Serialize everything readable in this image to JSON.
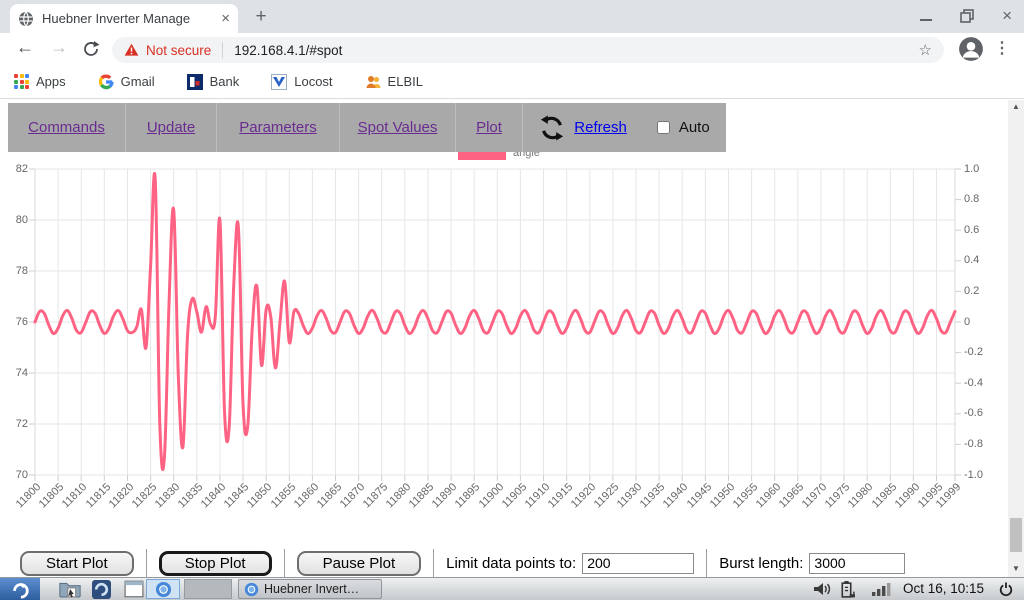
{
  "browser": {
    "tab_title": "Huebner Inverter Manage",
    "url": "192.168.4.1/#spot",
    "security_label": "Not secure",
    "bookmarks": [
      {
        "label": "Apps"
      },
      {
        "label": "Gmail"
      },
      {
        "label": "Bank"
      },
      {
        "label": "Locost"
      },
      {
        "label": "ELBIL"
      }
    ],
    "glyphs": {
      "close": "×",
      "new_tab": "+",
      "back": "←",
      "forward": "→",
      "star": "☆",
      "menu_dots": "⋮",
      "up_arrow": "▲",
      "down_arrow": "▼"
    }
  },
  "nav": {
    "links": [
      "Commands",
      "Update",
      "Parameters",
      "Spot Values",
      "Plot"
    ],
    "refresh_label": "Refresh",
    "auto_label": "Auto",
    "link_color": "#6a2c91",
    "refresh_color": "#0000ee"
  },
  "chart_data": {
    "type": "line",
    "title": "",
    "legend": [
      {
        "label": "angle",
        "color": "#ff6384"
      }
    ],
    "grid": true,
    "x_start": 11800,
    "x_tick_labels": [
      "11800",
      "11805",
      "11810",
      "11815",
      "11820",
      "11825",
      "11830",
      "11835",
      "11840",
      "11845",
      "11850",
      "11855",
      "11860",
      "11865",
      "11870",
      "11875",
      "11880",
      "11885",
      "11890",
      "11895",
      "11900",
      "11905",
      "11910",
      "11915",
      "11920",
      "11925",
      "11930",
      "11935",
      "11940",
      "11945",
      "11950",
      "11955",
      "11960",
      "11965",
      "11970",
      "11975",
      "11980",
      "11985",
      "11990",
      "11995",
      "11999"
    ],
    "y_left": {
      "min": 70,
      "max": 82,
      "ticks": [
        "82",
        "80",
        "78",
        "76",
        "74",
        "72",
        "70"
      ]
    },
    "y_right": {
      "min": -1,
      "max": 1,
      "ticks": [
        "1.0",
        "0.8",
        "0.6",
        "0.4",
        "0.2",
        "0",
        "-0.2",
        "-0.4",
        "-0.6",
        "-0.8",
        "-1.0"
      ]
    },
    "series": [
      {
        "name": "angle",
        "color": "#ff6384",
        "values": [
          76,
          76.41,
          76.34,
          75.87,
          75.55,
          75.76,
          76.24,
          76.45,
          76.13,
          75.66,
          75.59,
          76,
          76.41,
          76.34,
          75.87,
          75.55,
          75.76,
          76.24,
          76.45,
          76.13,
          75.66,
          75.59,
          75.8,
          76.5,
          75,
          78.2,
          81.6,
          72,
          70.7,
          76.8,
          80.4,
          73.9,
          71.1,
          75.5,
          76.9,
          76.4,
          75.6,
          76.6,
          75.9,
          76.2,
          80,
          72.5,
          71.9,
          77.5,
          79.7,
          72.8,
          71.9,
          75.8,
          77.4,
          74.3,
          76.5,
          76.2,
          74.2,
          76,
          77.6,
          75.2,
          76.4,
          76.34,
          75.87,
          75.55,
          75.76,
          76.24,
          76.45,
          76.13,
          75.66,
          75.59,
          76,
          76.41,
          76.34,
          75.87,
          75.55,
          75.76,
          76.24,
          76.45,
          76.13,
          75.66,
          75.59,
          76,
          76.41,
          76.34,
          75.87,
          75.55,
          75.76,
          76.24,
          76.45,
          76.13,
          75.66,
          75.59,
          76,
          76.41,
          76.34,
          75.87,
          75.55,
          75.76,
          76.24,
          76.45,
          76.13,
          75.66,
          75.59,
          76,
          76.41,
          76.34,
          75.87,
          75.55,
          75.76,
          76.24,
          76.45,
          76.13,
          75.66,
          75.59,
          76,
          76.41,
          76.34,
          75.87,
          75.55,
          75.76,
          76.24,
          76.45,
          76.13,
          75.66,
          75.59,
          76,
          76.41,
          76.34,
          75.87,
          75.55,
          75.76,
          76.24,
          76.45,
          76.13,
          75.66,
          75.59,
          76,
          76.41,
          76.34,
          75.87,
          75.55,
          75.76,
          76.24,
          76.45,
          76.13,
          75.66,
          75.59,
          76,
          76.41,
          76.34,
          75.87,
          75.55,
          75.76,
          76.24,
          76.45,
          76.13,
          75.66,
          75.59,
          76,
          76.41,
          76.34,
          75.87,
          75.55,
          75.76,
          76.24,
          76.45,
          76.13,
          75.66,
          75.59,
          76,
          76.41,
          76.34,
          75.87,
          75.55,
          75.76,
          76.24,
          76.45,
          76.13,
          75.66,
          75.59,
          76,
          76.41,
          76.34,
          75.87,
          75.55,
          75.76,
          76.24,
          76.45,
          76.13,
          75.66,
          75.59,
          76,
          76.41,
          76.34,
          75.87,
          75.55,
          75.76,
          76.24,
          76.45,
          76.13,
          75.66,
          75.59,
          76,
          76.41
        ]
      }
    ]
  },
  "controls": {
    "start_label": "Start Plot",
    "stop_label": "Stop Plot",
    "pause_label": "Pause Plot",
    "limit_label": "Limit data points to:",
    "limit_value": "200",
    "burst_label": "Burst length:",
    "burst_value": "3000"
  },
  "taskbar": {
    "window_button_label": "Huebner Invert…",
    "clock": "Oct 16, 10:15"
  }
}
